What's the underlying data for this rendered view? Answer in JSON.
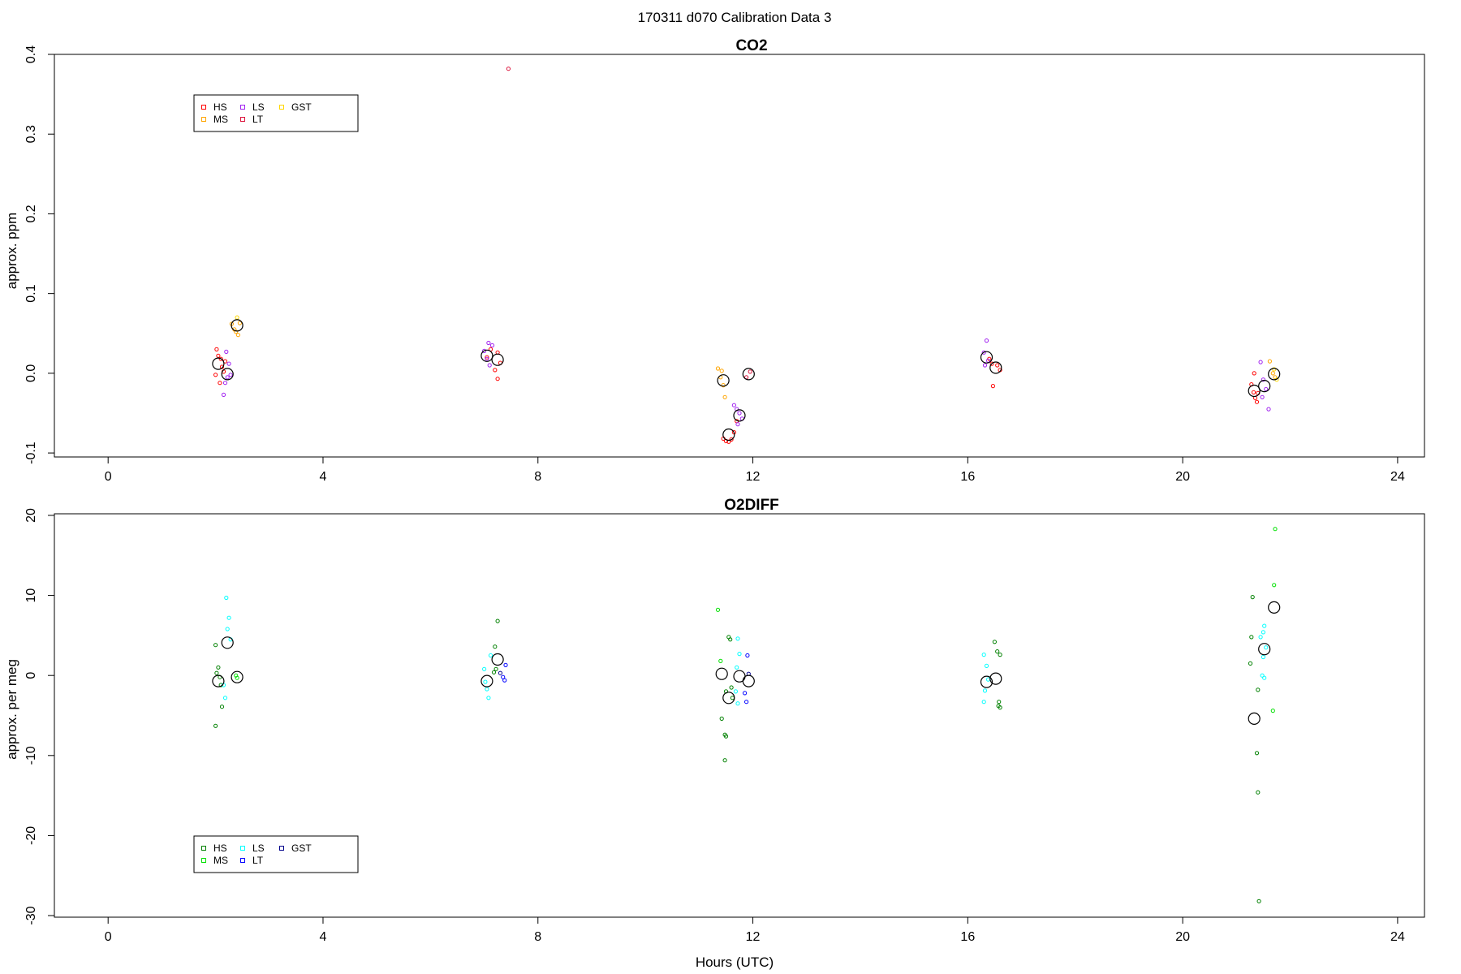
{
  "page": {
    "title": "170311   d070   Calibration Data 3"
  },
  "chart_data": [
    {
      "type": "scatter",
      "title": "CO2",
      "xlabel": "",
      "ylabel": "approx. ppm",
      "xlim": [
        -1.0,
        24.5
      ],
      "ylim": [
        -0.105,
        0.4
      ],
      "xticks": [
        0,
        4,
        8,
        12,
        16,
        20,
        24
      ],
      "yticks": [
        -0.1,
        0.0,
        0.1,
        0.2,
        0.3,
        0.4
      ],
      "ytick_labels": [
        "-0.1",
        "0.0",
        "0.1",
        "0.2",
        "0.3",
        "0.4"
      ],
      "legend": {
        "placement": "top-left",
        "entries": [
          "HS",
          "MS",
          "LS",
          "LT",
          "GST"
        ],
        "colors": [
          "#ff0000",
          "#ffa500",
          "#a020f0",
          "#dc143c",
          "#ffd700"
        ]
      },
      "series": [
        {
          "name": "HS",
          "color": "#ff0000",
          "points": [
            [
              2.02,
              0.03
            ],
            [
              2.05,
              0.022
            ],
            [
              2.1,
              0.018
            ],
            [
              2.12,
              0.008
            ],
            [
              2.15,
              0.002
            ],
            [
              2.0,
              -0.002
            ],
            [
              2.08,
              -0.012
            ],
            [
              2.18,
              0.015
            ],
            [
              7.05,
              0.02
            ],
            [
              7.12,
              0.03
            ],
            [
              7.25,
              0.026
            ],
            [
              7.3,
              0.013
            ],
            [
              7.2,
              0.004
            ],
            [
              7.25,
              -0.007
            ],
            [
              11.45,
              -0.082
            ],
            [
              11.5,
              -0.085
            ],
            [
              11.55,
              -0.086
            ],
            [
              11.6,
              -0.083
            ],
            [
              11.65,
              -0.074
            ],
            [
              11.7,
              -0.06
            ],
            [
              16.4,
              0.018
            ],
            [
              16.45,
              0.012
            ],
            [
              16.55,
              0.01
            ],
            [
              16.6,
              0.004
            ],
            [
              16.47,
              -0.016
            ],
            [
              21.28,
              -0.014
            ],
            [
              21.32,
              -0.024
            ],
            [
              21.35,
              -0.031
            ],
            [
              21.38,
              -0.036
            ],
            [
              21.4,
              -0.025
            ],
            [
              21.33,
              0.0
            ]
          ]
        },
        {
          "name": "MS",
          "color": "#ffa500",
          "points": [
            [
              2.3,
              0.062
            ],
            [
              2.35,
              0.055
            ],
            [
              2.38,
              0.052
            ],
            [
              2.42,
              0.048
            ],
            [
              2.45,
              0.063
            ],
            [
              11.35,
              0.006
            ],
            [
              11.42,
              0.003
            ],
            [
              11.4,
              -0.005
            ],
            [
              11.45,
              -0.015
            ],
            [
              11.48,
              -0.03
            ],
            [
              21.62,
              0.015
            ],
            [
              21.68,
              0.0
            ],
            [
              21.72,
              -0.005
            ]
          ]
        },
        {
          "name": "LS",
          "color": "#a020f0",
          "points": [
            [
              2.2,
              0.027
            ],
            [
              2.25,
              0.012
            ],
            [
              2.22,
              -0.005
            ],
            [
              2.18,
              -0.012
            ],
            [
              2.15,
              -0.027
            ],
            [
              2.28,
              -0.002
            ],
            [
              7.0,
              0.028
            ],
            [
              7.08,
              0.038
            ],
            [
              7.15,
              0.035
            ],
            [
              7.05,
              0.018
            ],
            [
              7.1,
              0.01
            ],
            [
              11.65,
              -0.04
            ],
            [
              11.7,
              -0.045
            ],
            [
              11.75,
              -0.05
            ],
            [
              11.8,
              -0.057
            ],
            [
              11.72,
              -0.064
            ],
            [
              16.35,
              0.041
            ],
            [
              16.3,
              0.026
            ],
            [
              16.38,
              0.016
            ],
            [
              16.32,
              0.01
            ],
            [
              21.45,
              0.014
            ],
            [
              21.5,
              -0.008
            ],
            [
              21.55,
              -0.02
            ],
            [
              21.6,
              -0.045
            ],
            [
              21.48,
              -0.03
            ]
          ]
        },
        {
          "name": "LT",
          "color": "#dc143c",
          "points": [
            [
              7.45,
              0.382
            ],
            [
              11.95,
              0.002
            ],
            [
              11.88,
              -0.005
            ]
          ]
        },
        {
          "name": "GST",
          "color": "#ffd700",
          "points": [
            [
              2.4,
              0.07
            ],
            [
              21.7,
              0.005
            ],
            [
              21.75,
              -0.008
            ]
          ]
        },
        {
          "name": "mean",
          "color": "#000000",
          "points": [
            [
              2.05,
              0.012
            ],
            [
              2.22,
              -0.001
            ],
            [
              2.4,
              0.06
            ],
            [
              7.05,
              0.022
            ],
            [
              7.25,
              0.017
            ],
            [
              11.45,
              -0.009
            ],
            [
              11.55,
              -0.077
            ],
            [
              11.75,
              -0.053
            ],
            [
              11.92,
              -0.001
            ],
            [
              16.35,
              0.02
            ],
            [
              16.52,
              0.007
            ],
            [
              21.33,
              -0.022
            ],
            [
              21.52,
              -0.016
            ],
            [
              21.7,
              -0.001
            ]
          ]
        }
      ]
    },
    {
      "type": "scatter",
      "title": "O2DIFF",
      "xlabel": "Hours (UTC)",
      "ylabel": "approx. per meg",
      "xlim": [
        -1.0,
        24.5
      ],
      "ylim": [
        -30.2,
        20.2
      ],
      "xticks": [
        0,
        4,
        8,
        12,
        16,
        20,
        24
      ],
      "yticks": [
        -30,
        -20,
        -10,
        0,
        10,
        20
      ],
      "ytick_labels": [
        "-30",
        "-20",
        "-10",
        "0",
        "10",
        "20"
      ],
      "legend": {
        "placement": "bottom-left",
        "entries": [
          "HS",
          "MS",
          "LS",
          "LT",
          "GST"
        ],
        "colors": [
          "#008000",
          "#00e000",
          "#00ffff",
          "#0000ff",
          "#00008b"
        ]
      },
      "series": [
        {
          "name": "HS",
          "color": "#008000",
          "points": [
            [
              2.0,
              3.8
            ],
            [
              2.05,
              1.0
            ],
            [
              2.02,
              0.3
            ],
            [
              2.08,
              -0.2
            ],
            [
              2.1,
              -1.2
            ],
            [
              2.12,
              -3.9
            ],
            [
              2.0,
              -6.3
            ],
            [
              7.2,
              3.6
            ],
            [
              7.25,
              6.8
            ],
            [
              7.22,
              0.8
            ],
            [
              7.18,
              0.4
            ],
            [
              11.42,
              -5.4
            ],
            [
              11.48,
              -7.4
            ],
            [
              11.5,
              -7.6
            ],
            [
              11.48,
              -10.6
            ],
            [
              11.55,
              4.8
            ],
            [
              11.58,
              4.5
            ],
            [
              11.6,
              -1.5
            ],
            [
              11.62,
              -2.8
            ],
            [
              11.5,
              -2.0
            ],
            [
              16.5,
              4.2
            ],
            [
              16.55,
              3.0
            ],
            [
              16.6,
              2.6
            ],
            [
              16.58,
              -3.3
            ],
            [
              16.57,
              -3.8
            ],
            [
              16.6,
              -4.0
            ],
            [
              21.3,
              9.8
            ],
            [
              21.28,
              4.8
            ],
            [
              21.26,
              1.5
            ],
            [
              21.38,
              -9.7
            ],
            [
              21.4,
              -14.6
            ],
            [
              21.42,
              -28.2
            ],
            [
              21.4,
              -1.8
            ]
          ]
        },
        {
          "name": "MS",
          "color": "#00e000",
          "points": [
            [
              2.38,
              0.0
            ],
            [
              2.4,
              -0.3
            ],
            [
              11.35,
              8.2
            ],
            [
              11.4,
              1.8
            ],
            [
              21.72,
              18.3
            ],
            [
              21.7,
              11.3
            ],
            [
              21.68,
              -4.4
            ]
          ]
        },
        {
          "name": "LS",
          "color": "#00ffff",
          "points": [
            [
              2.2,
              9.7
            ],
            [
              2.25,
              7.2
            ],
            [
              2.22,
              5.8
            ],
            [
              2.28,
              4.5
            ],
            [
              2.15,
              -1.2
            ],
            [
              2.18,
              -2.8
            ],
            [
              7.0,
              0.8
            ],
            [
              7.02,
              -0.8
            ],
            [
              7.05,
              -1.7
            ],
            [
              7.08,
              -2.8
            ],
            [
              7.12,
              2.5
            ],
            [
              11.72,
              4.6
            ],
            [
              11.75,
              2.7
            ],
            [
              11.7,
              1.0
            ],
            [
              11.68,
              -2.0
            ],
            [
              11.72,
              -3.5
            ],
            [
              16.3,
              2.6
            ],
            [
              16.35,
              1.2
            ],
            [
              16.38,
              -0.5
            ],
            [
              16.32,
              -1.9
            ],
            [
              16.3,
              -3.3
            ],
            [
              21.45,
              4.8
            ],
            [
              21.5,
              5.4
            ],
            [
              21.52,
              6.2
            ],
            [
              21.55,
              3.5
            ],
            [
              21.5,
              2.3
            ],
            [
              21.48,
              0.0
            ],
            [
              21.52,
              -0.3
            ]
          ]
        },
        {
          "name": "LT",
          "color": "#0000ff",
          "points": [
            [
              7.35,
              -0.2
            ],
            [
              7.38,
              -0.6
            ],
            [
              7.4,
              1.3
            ],
            [
              11.9,
              2.5
            ],
            [
              11.85,
              -2.2
            ],
            [
              11.88,
              -3.3
            ]
          ]
        },
        {
          "name": "GST",
          "color": "#00008b",
          "points": [
            [
              7.3,
              0.3
            ],
            [
              11.92,
              0.2
            ]
          ]
        },
        {
          "name": "mean",
          "color": "#000000",
          "points": [
            [
              2.05,
              -0.7
            ],
            [
              2.22,
              4.1
            ],
            [
              2.4,
              -0.2
            ],
            [
              7.05,
              -0.7
            ],
            [
              7.25,
              2.0
            ],
            [
              11.42,
              0.2
            ],
            [
              11.55,
              -2.8
            ],
            [
              11.75,
              -0.1
            ],
            [
              11.92,
              -0.7
            ],
            [
              16.35,
              -0.8
            ],
            [
              16.52,
              -0.4
            ],
            [
              21.33,
              -5.4
            ],
            [
              21.52,
              3.3
            ],
            [
              21.7,
              8.5
            ]
          ]
        }
      ]
    }
  ]
}
